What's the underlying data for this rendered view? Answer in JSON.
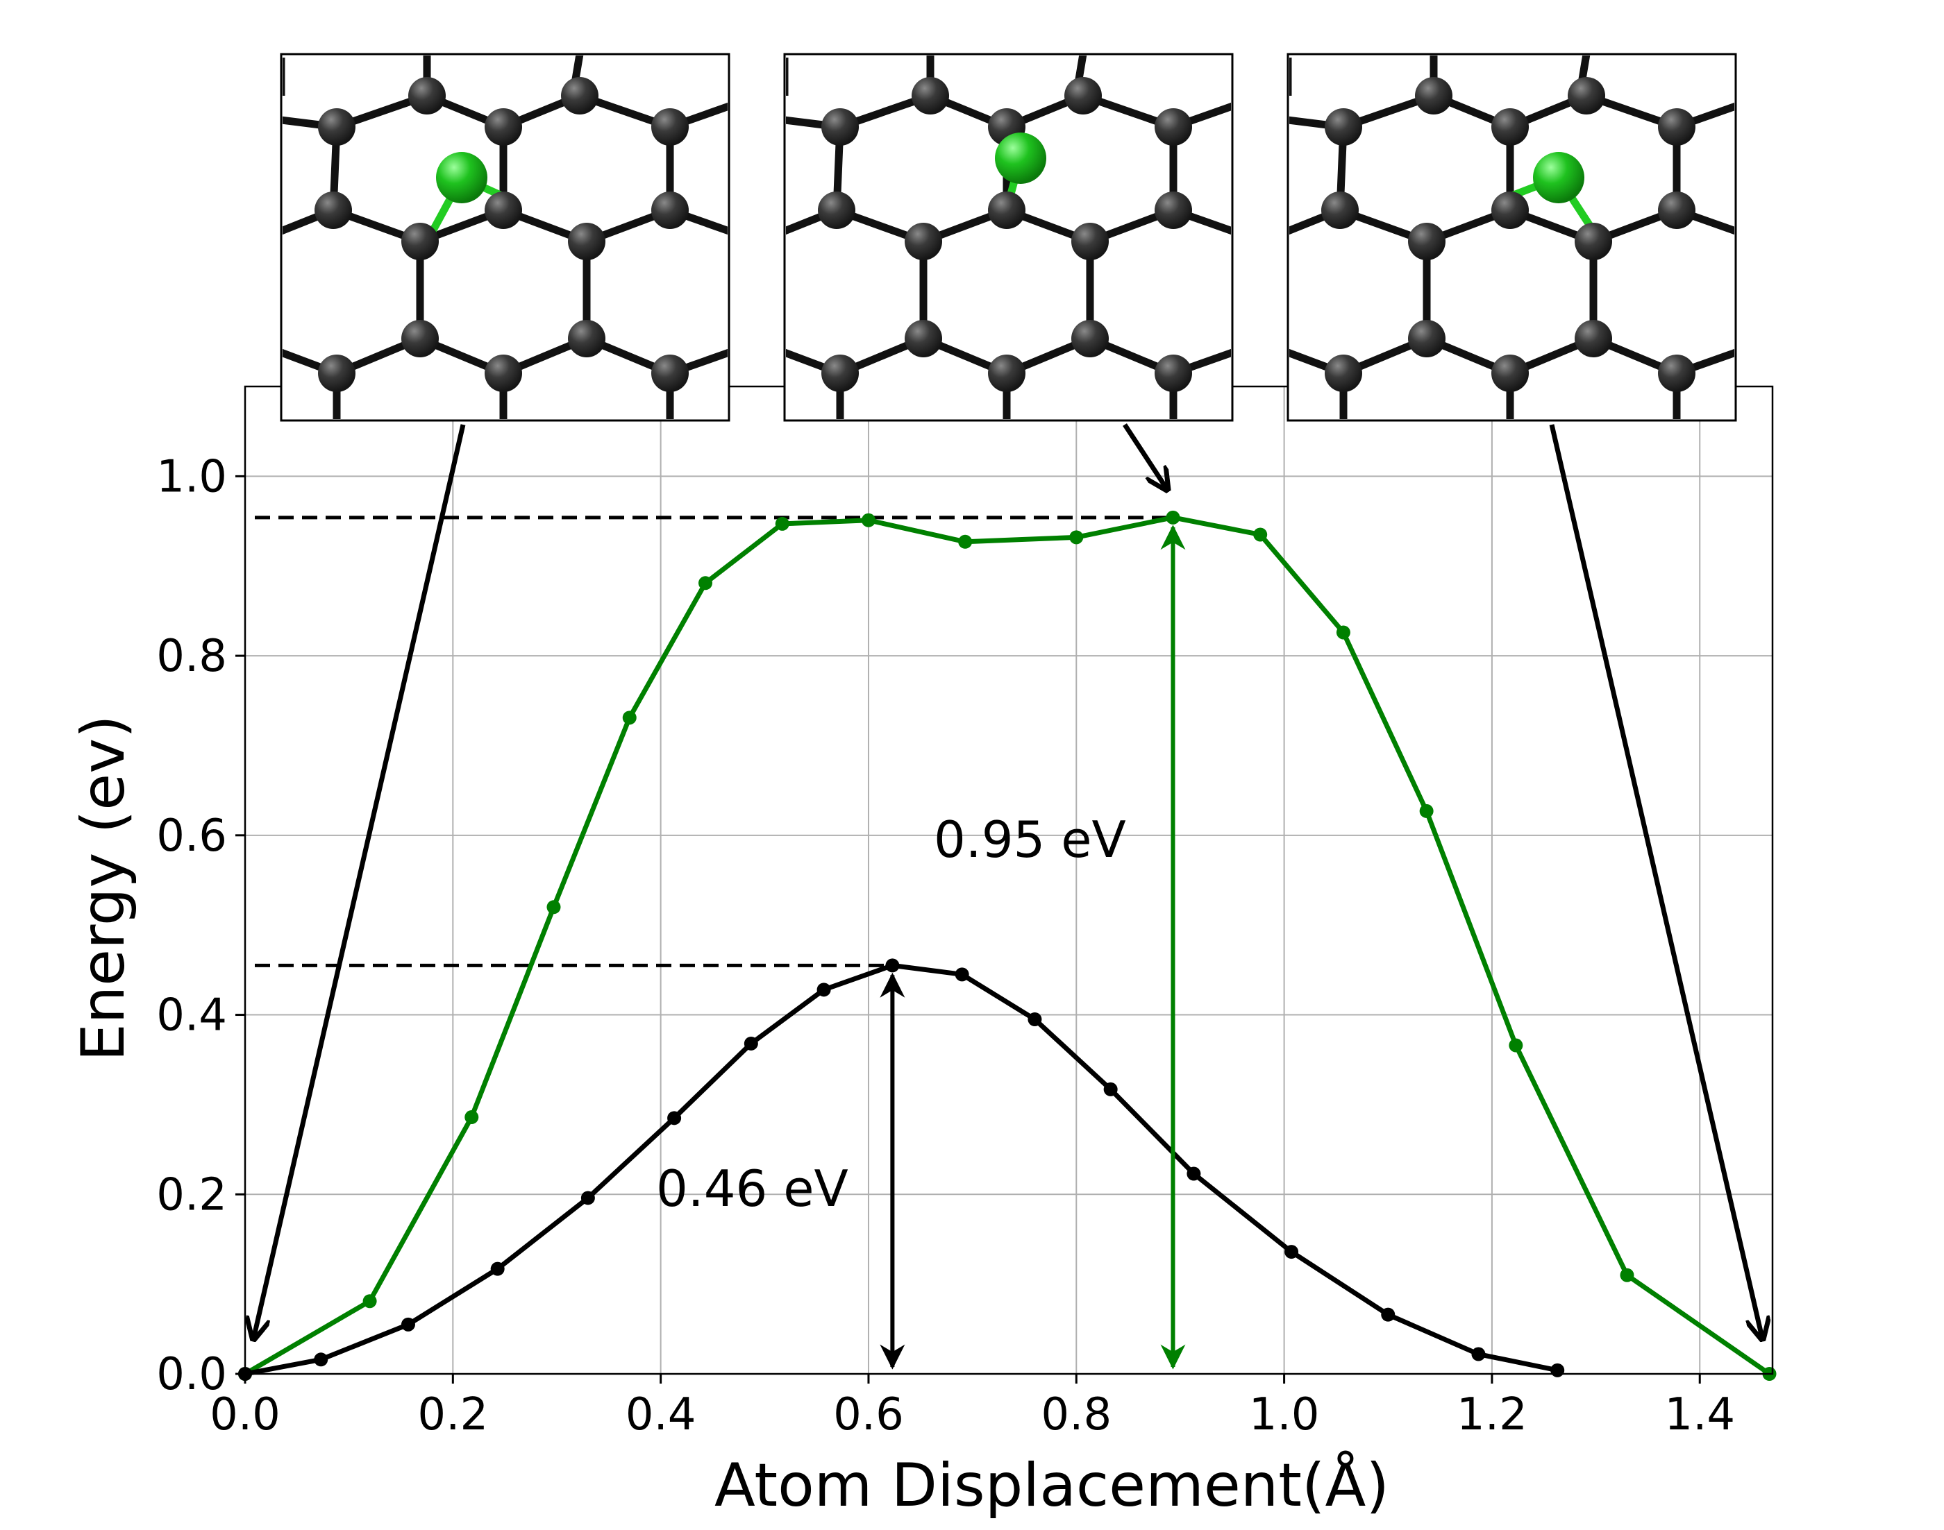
{
  "chart_data": {
    "type": "line",
    "title": "",
    "xlabel": "Atom Displacement(Å)",
    "ylabel": "Energy (ev)",
    "xlim": [
      0.0,
      1.47
    ],
    "ylim": [
      0.0,
      1.1
    ],
    "xticks": [
      "0.0",
      "0.2",
      "0.4",
      "0.6",
      "0.8",
      "1.0",
      "1.2",
      "1.4"
    ],
    "yticks": [
      "0.0",
      "0.2",
      "0.4",
      "0.6",
      "0.8",
      "1.0"
    ],
    "grid": true,
    "series": [
      {
        "color": "#008000",
        "x": [
          0.0,
          0.12,
          0.218,
          0.297,
          0.37,
          0.443,
          0.517,
          0.6,
          0.693,
          0.8,
          0.893,
          0.977,
          1.057,
          1.137,
          1.223,
          1.33,
          1.467
        ],
        "y": [
          0.0,
          0.081,
          0.286,
          0.52,
          0.731,
          0.881,
          0.947,
          0.951,
          0.927,
          0.932,
          0.954,
          0.935,
          0.826,
          0.627,
          0.366,
          0.11,
          0.0
        ]
      },
      {
        "color": "#000000",
        "x": [
          0.0,
          0.073,
          0.157,
          0.243,
          0.33,
          0.413,
          0.487,
          0.557,
          0.623,
          0.69,
          0.76,
          0.833,
          0.913,
          1.007,
          1.1,
          1.187,
          1.263
        ],
        "y": [
          0.0,
          0.016,
          0.055,
          0.117,
          0.196,
          0.285,
          0.368,
          0.428,
          0.455,
          0.445,
          0.395,
          0.317,
          0.223,
          0.136,
          0.066,
          0.022,
          0.004
        ]
      }
    ],
    "annotations": [
      {
        "text": "0.95 eV",
        "x": 0.893,
        "from": 0.0,
        "to": 0.954,
        "color": "#008000"
      },
      {
        "text": "0.46 eV",
        "x": 0.623,
        "from": 0.0,
        "to": 0.455,
        "color": "#000000"
      }
    ],
    "reference_lines": [
      0.954,
      0.455
    ]
  },
  "insets": [
    {
      "name": "initial-state",
      "points_to": [
        0.0,
        0.0
      ],
      "dopant_color": "#22bb22"
    },
    {
      "name": "transition-state",
      "points_to": [
        0.893,
        0.954
      ],
      "dopant_color": "#22bb22"
    },
    {
      "name": "final-state",
      "points_to": [
        1.467,
        0.0
      ],
      "dopant_color": "#22bb22"
    }
  ]
}
